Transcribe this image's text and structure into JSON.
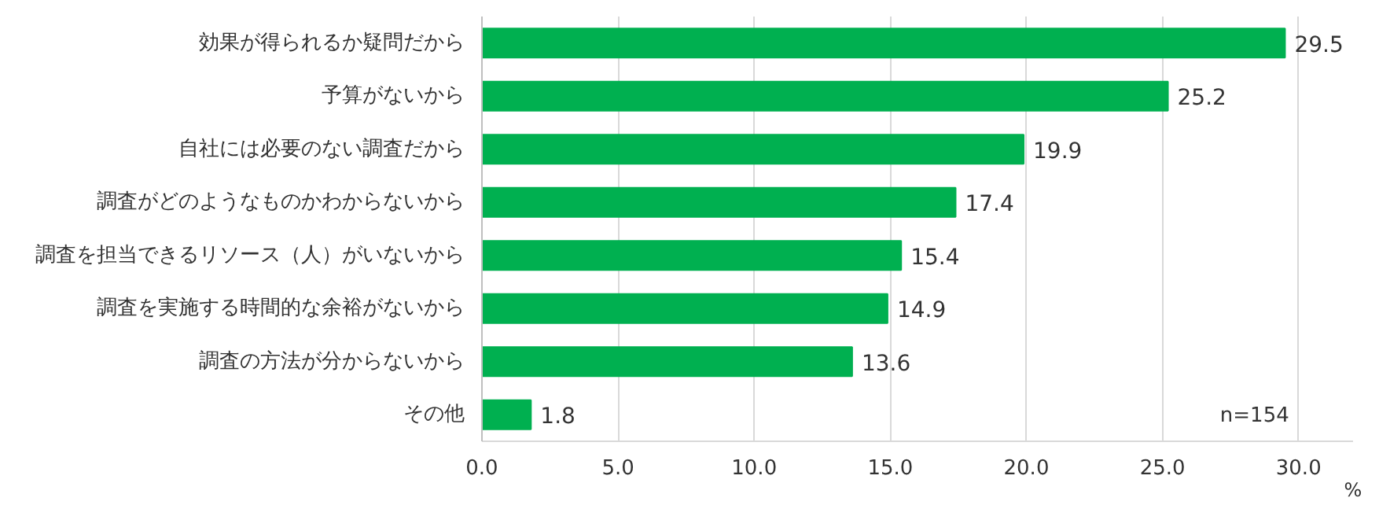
{
  "chart_data": {
    "type": "bar",
    "orientation": "horizontal",
    "categories": [
      "効果が得られるか疑問だから",
      "予算がないから",
      "自社には必要のない調査だから",
      "調査がどのようなものかわからないから",
      "調査を担当できるリソース（人）がいないから",
      "調査を実施する時間的な余裕がないから",
      "調査の方法が分からないから",
      "その他"
    ],
    "values": [
      29.5,
      25.2,
      19.9,
      17.4,
      15.4,
      14.9,
      13.6,
      1.8
    ],
    "color": "#00b050",
    "data_labels": true,
    "xlabel": "%",
    "xlim": [
      0,
      32
    ],
    "xticks": [
      {
        "value": 0,
        "label": "0.0"
      },
      {
        "value": 5,
        "label": "5.0"
      },
      {
        "value": 10,
        "label": "10.0"
      },
      {
        "value": 15,
        "label": "15.0"
      },
      {
        "value": 20,
        "label": "20.0"
      },
      {
        "value": 25,
        "label": "25.0"
      },
      {
        "value": 30,
        "label": "30.0"
      }
    ],
    "grid": "x",
    "annotations": [
      "n=154"
    ]
  }
}
